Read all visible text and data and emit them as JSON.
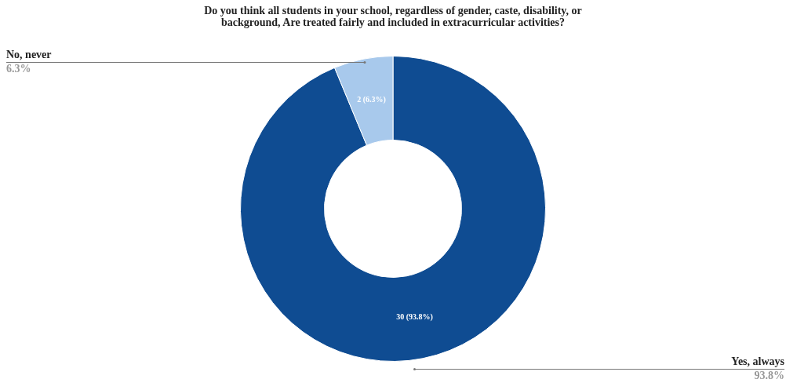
{
  "chart_data": {
    "type": "donut",
    "title": "Do you think all students in your school, regardless of gender, caste, disability, or background, Are treated fairly and included in extracurricular activities?",
    "categories": [
      "Yes, always",
      "No, never"
    ],
    "values": [
      30,
      2
    ],
    "colors": [
      "#0f4c92",
      "#a8c9ec"
    ],
    "value_labels": [
      "30 (93.8%)",
      "2 (6.3%)"
    ],
    "annotations": [
      "93.8%",
      "6.3%"
    ],
    "legend": false
  }
}
